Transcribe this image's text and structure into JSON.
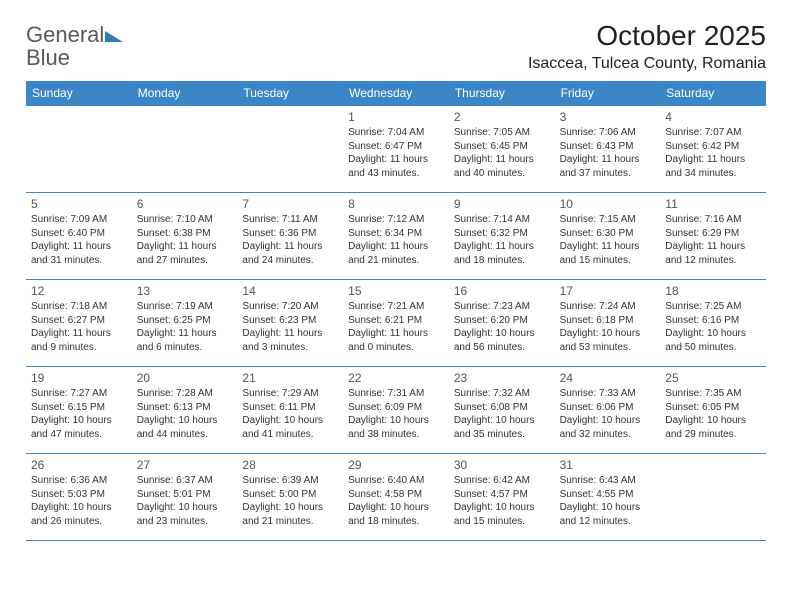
{
  "logo": {
    "part1": "General",
    "part2": "Blue"
  },
  "title": "October 2025",
  "location": "Isaccea, Tulcea County, Romania",
  "header_bg": "#3b86c7",
  "border_color": "#3b86c7",
  "text_color": "#333333",
  "daynum_color": "#555555",
  "background_color": "#ffffff",
  "weekdays": [
    "Sunday",
    "Monday",
    "Tuesday",
    "Wednesday",
    "Thursday",
    "Friday",
    "Saturday"
  ],
  "weeks": [
    [
      null,
      null,
      null,
      {
        "n": "1",
        "sr": "7:04 AM",
        "ss": "6:47 PM",
        "dl": "11 hours and 43 minutes."
      },
      {
        "n": "2",
        "sr": "7:05 AM",
        "ss": "6:45 PM",
        "dl": "11 hours and 40 minutes."
      },
      {
        "n": "3",
        "sr": "7:06 AM",
        "ss": "6:43 PM",
        "dl": "11 hours and 37 minutes."
      },
      {
        "n": "4",
        "sr": "7:07 AM",
        "ss": "6:42 PM",
        "dl": "11 hours and 34 minutes."
      }
    ],
    [
      {
        "n": "5",
        "sr": "7:09 AM",
        "ss": "6:40 PM",
        "dl": "11 hours and 31 minutes."
      },
      {
        "n": "6",
        "sr": "7:10 AM",
        "ss": "6:38 PM",
        "dl": "11 hours and 27 minutes."
      },
      {
        "n": "7",
        "sr": "7:11 AM",
        "ss": "6:36 PM",
        "dl": "11 hours and 24 minutes."
      },
      {
        "n": "8",
        "sr": "7:12 AM",
        "ss": "6:34 PM",
        "dl": "11 hours and 21 minutes."
      },
      {
        "n": "9",
        "sr": "7:14 AM",
        "ss": "6:32 PM",
        "dl": "11 hours and 18 minutes."
      },
      {
        "n": "10",
        "sr": "7:15 AM",
        "ss": "6:30 PM",
        "dl": "11 hours and 15 minutes."
      },
      {
        "n": "11",
        "sr": "7:16 AM",
        "ss": "6:29 PM",
        "dl": "11 hours and 12 minutes."
      }
    ],
    [
      {
        "n": "12",
        "sr": "7:18 AM",
        "ss": "6:27 PM",
        "dl": "11 hours and 9 minutes."
      },
      {
        "n": "13",
        "sr": "7:19 AM",
        "ss": "6:25 PM",
        "dl": "11 hours and 6 minutes."
      },
      {
        "n": "14",
        "sr": "7:20 AM",
        "ss": "6:23 PM",
        "dl": "11 hours and 3 minutes."
      },
      {
        "n": "15",
        "sr": "7:21 AM",
        "ss": "6:21 PM",
        "dl": "11 hours and 0 minutes."
      },
      {
        "n": "16",
        "sr": "7:23 AM",
        "ss": "6:20 PM",
        "dl": "10 hours and 56 minutes."
      },
      {
        "n": "17",
        "sr": "7:24 AM",
        "ss": "6:18 PM",
        "dl": "10 hours and 53 minutes."
      },
      {
        "n": "18",
        "sr": "7:25 AM",
        "ss": "6:16 PM",
        "dl": "10 hours and 50 minutes."
      }
    ],
    [
      {
        "n": "19",
        "sr": "7:27 AM",
        "ss": "6:15 PM",
        "dl": "10 hours and 47 minutes."
      },
      {
        "n": "20",
        "sr": "7:28 AM",
        "ss": "6:13 PM",
        "dl": "10 hours and 44 minutes."
      },
      {
        "n": "21",
        "sr": "7:29 AM",
        "ss": "6:11 PM",
        "dl": "10 hours and 41 minutes."
      },
      {
        "n": "22",
        "sr": "7:31 AM",
        "ss": "6:09 PM",
        "dl": "10 hours and 38 minutes."
      },
      {
        "n": "23",
        "sr": "7:32 AM",
        "ss": "6:08 PM",
        "dl": "10 hours and 35 minutes."
      },
      {
        "n": "24",
        "sr": "7:33 AM",
        "ss": "6:06 PM",
        "dl": "10 hours and 32 minutes."
      },
      {
        "n": "25",
        "sr": "7:35 AM",
        "ss": "6:05 PM",
        "dl": "10 hours and 29 minutes."
      }
    ],
    [
      {
        "n": "26",
        "sr": "6:36 AM",
        "ss": "5:03 PM",
        "dl": "10 hours and 26 minutes."
      },
      {
        "n": "27",
        "sr": "6:37 AM",
        "ss": "5:01 PM",
        "dl": "10 hours and 23 minutes."
      },
      {
        "n": "28",
        "sr": "6:39 AM",
        "ss": "5:00 PM",
        "dl": "10 hours and 21 minutes."
      },
      {
        "n": "29",
        "sr": "6:40 AM",
        "ss": "4:58 PM",
        "dl": "10 hours and 18 minutes."
      },
      {
        "n": "30",
        "sr": "6:42 AM",
        "ss": "4:57 PM",
        "dl": "10 hours and 15 minutes."
      },
      {
        "n": "31",
        "sr": "6:43 AM",
        "ss": "4:55 PM",
        "dl": "10 hours and 12 minutes."
      },
      null
    ]
  ],
  "labels": {
    "sunrise": "Sunrise:",
    "sunset": "Sunset:",
    "daylight": "Daylight:"
  }
}
